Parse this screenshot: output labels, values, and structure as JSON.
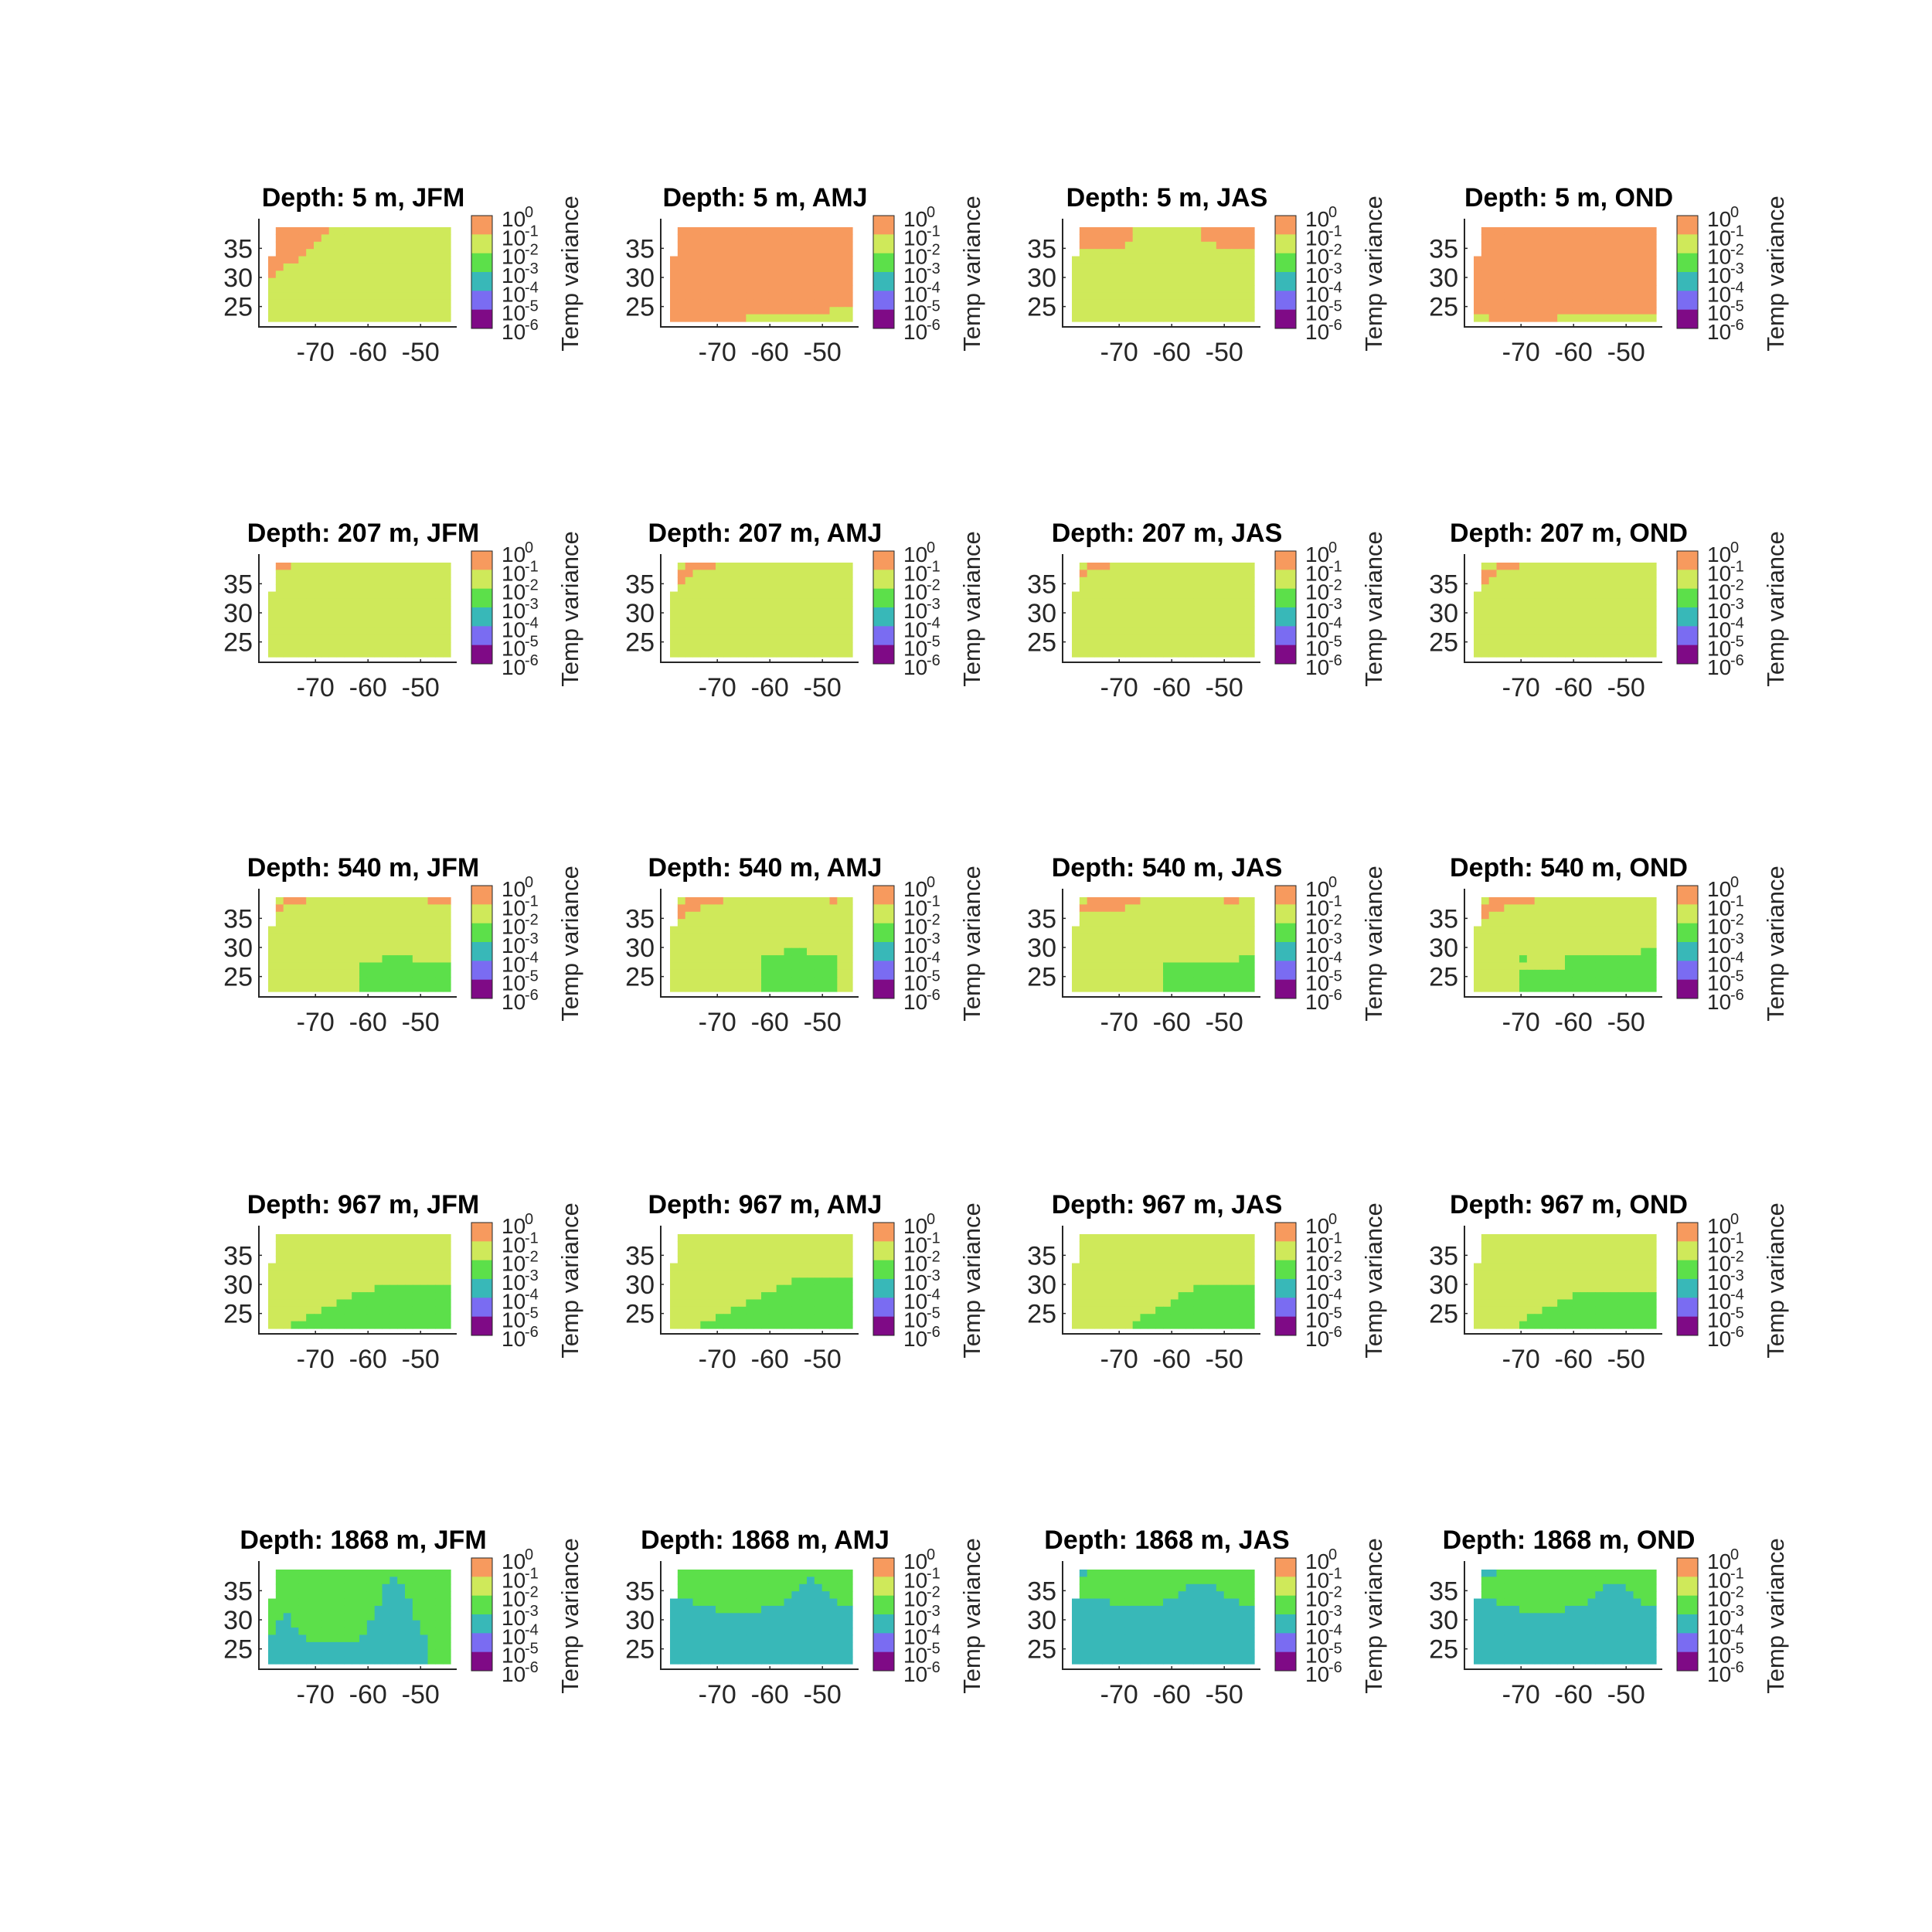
{
  "chart_data": {
    "type": "heatmap",
    "layout": {
      "rows": 5,
      "cols": 4
    },
    "x_ticks": [
      "-70",
      "-60",
      "-50"
    ],
    "y_ticks": [
      "35",
      "30",
      "25"
    ],
    "xlim": [
      -79,
      -44
    ],
    "ylim": [
      21.5,
      38.5
    ],
    "colorbar": {
      "label": "Temp variance",
      "scale": "log",
      "tick_base": "10",
      "tick_exponents": [
        "0",
        "-1",
        "-2",
        "-3",
        "-4",
        "-5",
        "-6"
      ],
      "colors": [
        "#f79a5e",
        "#cfe95a",
        "#5ce04a",
        "#38b8b8",
        "#7a6cf2",
        "#7f0a86"
      ]
    },
    "panels": [
      {
        "title": "Depth: 5 m, JFM"
      },
      {
        "title": "Depth: 5 m, AMJ"
      },
      {
        "title": "Depth: 5 m, JAS"
      },
      {
        "title": "Depth: 5 m, OND"
      },
      {
        "title": "Depth: 207 m, JFM"
      },
      {
        "title": "Depth: 207 m, AMJ"
      },
      {
        "title": "Depth: 207 m, JAS"
      },
      {
        "title": "Depth: 207 m, OND"
      },
      {
        "title": "Depth: 540 m, JFM"
      },
      {
        "title": "Depth: 540 m, AMJ"
      },
      {
        "title": "Depth: 540 m, JAS"
      },
      {
        "title": "Depth: 540 m, OND"
      },
      {
        "title": "Depth: 967 m, JFM"
      },
      {
        "title": "Depth: 967 m, AMJ"
      },
      {
        "title": "Depth: 967 m, JAS"
      },
      {
        "title": "Depth: 967 m, OND"
      },
      {
        "title": "Depth: 1868 m, JFM"
      },
      {
        "title": "Depth: 1868 m, AMJ"
      },
      {
        "title": "Depth: 1868 m, JAS"
      },
      {
        "title": "Depth: 1868 m, OND"
      }
    ]
  }
}
